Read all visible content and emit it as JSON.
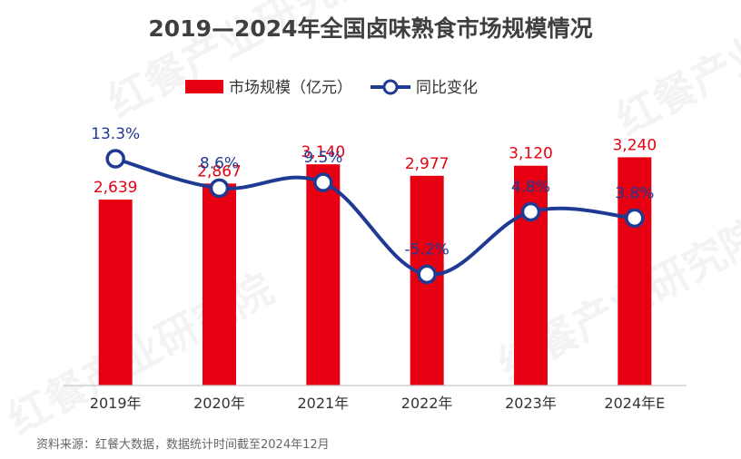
{
  "watermark_text": "红餐产业研究院",
  "legend": {
    "bar_label": "市场规模（亿元）",
    "line_label": "同比变化"
  },
  "source_note": "资料来源：红餐大数据，数据统计时间截至2024年12月",
  "colors": {
    "bar": "#e60012",
    "line": "#1f3a93",
    "axis": "#c8c8c8"
  },
  "chart_data": {
    "type": "bar",
    "title": "2019—2024年全国卤味熟食市场规模情况",
    "categories": [
      "2019年",
      "2020年",
      "2021年",
      "2022年",
      "2023年",
      "2024年E"
    ],
    "series": [
      {
        "name": "市场规模（亿元）",
        "kind": "bar",
        "values": [
          2639,
          2867,
          3140,
          2977,
          3120,
          3240
        ],
        "labels": [
          "2,639",
          "2,867",
          "3,140",
          "2,977",
          "3,120",
          "3,240"
        ]
      },
      {
        "name": "同比变化",
        "kind": "line",
        "values": [
          13.3,
          8.6,
          9.5,
          -5.2,
          4.8,
          3.8
        ],
        "labels": [
          "13.3%",
          "8.6%",
          "9.5%",
          "-5.2%",
          "4.8%",
          "3.8%"
        ]
      }
    ],
    "ylim": [
      0,
      4700
    ],
    "y2lim": [
      -23,
      30
    ],
    "xlabel": "",
    "ylabel": "",
    "grid": false,
    "legend_position": "top-center"
  }
}
